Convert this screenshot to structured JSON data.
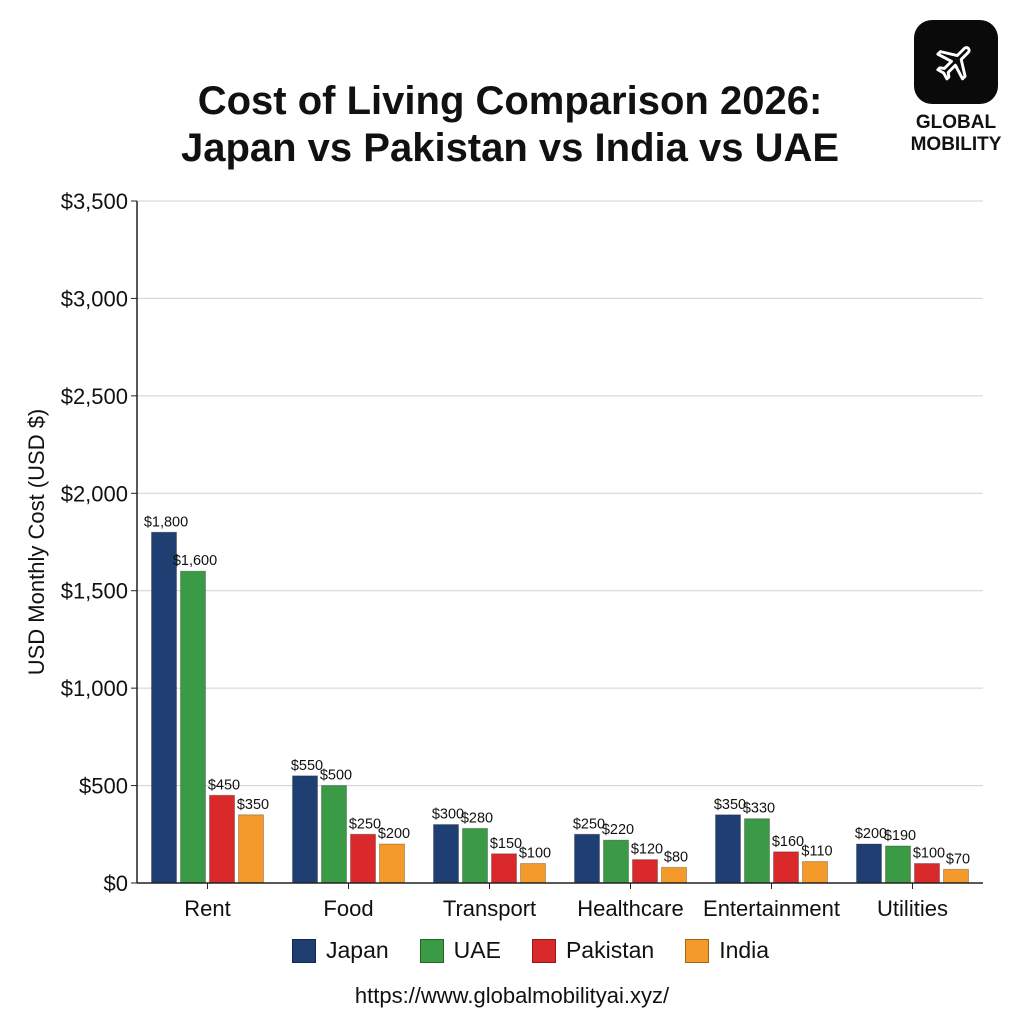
{
  "branding": {
    "line1": "GLOBAL",
    "line2": "MOBILITY",
    "icon": "airplane-icon"
  },
  "footer": {
    "url": "https://www.globalmobilityai.xyz/"
  },
  "chart_data": {
    "type": "bar",
    "title_lines": [
      "Cost of Living Comparison 2026:",
      "Japan vs Pakistan vs India vs UAE"
    ],
    "xlabel": "",
    "ylabel": "USD Monthly Cost (USD $)",
    "ylim": [
      0,
      3500
    ],
    "yticks": [
      0,
      500,
      1000,
      1500,
      2000,
      2500,
      3000,
      3500
    ],
    "ytick_labels": [
      "$0",
      "$500",
      "$1,000",
      "$1,500",
      "$2,000",
      "$2,500",
      "$3,000",
      "$3,500"
    ],
    "grid": true,
    "legend_position": "bottom",
    "categories": [
      "Rent",
      "Food",
      "Transport",
      "Healthcare",
      "Entertainment",
      "Utilities"
    ],
    "series": [
      {
        "name": "Japan",
        "color": "#1f3f73",
        "values": [
          1800,
          550,
          300,
          250,
          350,
          200
        ],
        "labels": [
          "$1,800",
          "$550",
          "$300",
          "$250",
          "$350",
          "$200"
        ]
      },
      {
        "name": "UAE",
        "color": "#3a9a45",
        "values": [
          1600,
          500,
          280,
          220,
          330,
          190
        ],
        "labels": [
          "$1,600",
          "$500",
          "$280",
          "$220",
          "$330",
          "$190"
        ]
      },
      {
        "name": "Pakistan",
        "color": "#d9292b",
        "values": [
          450,
          250,
          150,
          120,
          160,
          100
        ],
        "labels": [
          "$450",
          "$250",
          "$150",
          "$120",
          "$160",
          "$100"
        ]
      },
      {
        "name": "India",
        "color": "#f49a2a",
        "values": [
          350,
          200,
          100,
          80,
          110,
          70
        ],
        "labels": [
          "$350",
          "$200",
          "$100",
          "$80",
          "$110",
          "$70"
        ]
      }
    ]
  }
}
